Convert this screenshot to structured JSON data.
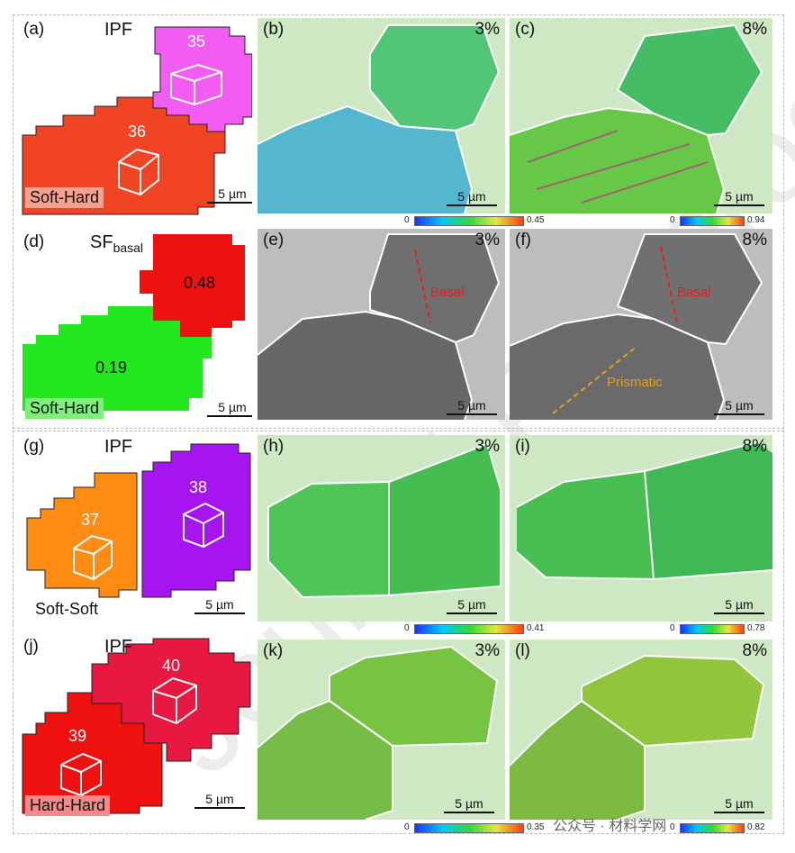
{
  "panels": {
    "a": {
      "label": "(a)",
      "title": "IPF",
      "grain_top": "35",
      "grain_bottom": "36",
      "pair": "Soft-Hard",
      "scale": "5 µm"
    },
    "b": {
      "label": "(b)",
      "strain": "3%",
      "scale": "5 µm",
      "cbar_min": "0",
      "cbar_max": "0.45"
    },
    "c": {
      "label": "(c)",
      "strain": "8%",
      "scale": "5 µm",
      "cbar_min": "0",
      "cbar_max": "0.94"
    },
    "d": {
      "label": "(d)",
      "title_main": "SF",
      "title_sub": "basal",
      "sf_top": "0.48",
      "sf_bottom": "0.19",
      "pair": "Soft-Hard",
      "scale": "5 µm"
    },
    "e": {
      "label": "(e)",
      "strain": "3%",
      "trace": "Basal",
      "scale": "5 µm"
    },
    "f": {
      "label": "(f)",
      "strain": "8%",
      "trace1": "Basal",
      "trace2": "Prismatic",
      "scale": "5 µm"
    },
    "g": {
      "label": "(g)",
      "title": "IPF",
      "grain_left": "37",
      "grain_right": "38",
      "pair": "Soft-Soft",
      "scale": "5 µm"
    },
    "h": {
      "label": "(h)",
      "strain": "3%",
      "scale": "5 µm",
      "cbar_min": "0",
      "cbar_max": "0.41"
    },
    "i": {
      "label": "(i)",
      "strain": "8%",
      "scale": "5 µm",
      "cbar_min": "0",
      "cbar_max": "0.78"
    },
    "j": {
      "label": "(j)",
      "title": "IPF",
      "grain_top": "40",
      "grain_bottom": "39",
      "pair": "Hard-Hard",
      "scale": "5 µm"
    },
    "k": {
      "label": "(k)",
      "strain": "3%",
      "scale": "5 µm",
      "cbar_min": "0",
      "cbar_max": "0.35"
    },
    "l": {
      "label": "(l)",
      "strain": "8%",
      "scale": "5 µm",
      "cbar_min": "0",
      "cbar_max": "0.82"
    }
  },
  "watermark": "Journal Pre-proof",
  "footer_text": "公众号 · 材料学网",
  "colors": {
    "grain35": "#f25cf2",
    "grain36": "#f04424",
    "sf_high": "#ee1111",
    "sf_low": "#22e81d",
    "grain37": "#ff8c12",
    "grain38": "#a615f0",
    "grain39": "#ef1010",
    "grain40": "#e81840",
    "kam_bg": "#cfe8c4",
    "sem_bg": "#bdbdbd",
    "trace_basal": "#e02020",
    "trace_prismatic": "#e0a020"
  }
}
